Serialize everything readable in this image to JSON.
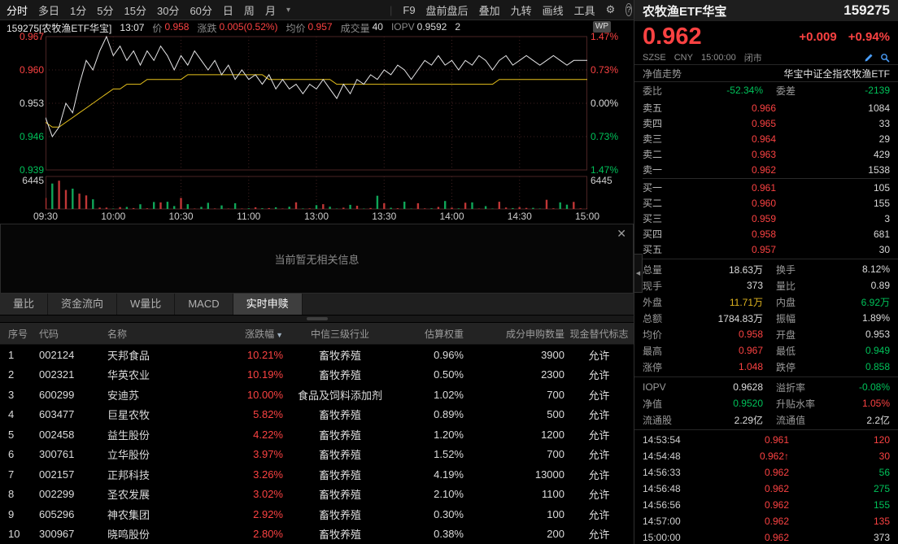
{
  "colors": {
    "red": "#fb4242",
    "green": "#00c25a",
    "yellow": "#e0b520",
    "white": "#dcdcdc",
    "gray": "#9a9a9a"
  },
  "toolbar": {
    "period_items": [
      "分时",
      "多日",
      "1分",
      "5分",
      "15分",
      "30分",
      "60分",
      "日",
      "周",
      "月"
    ],
    "active_period": "分时",
    "dropdown_caret": "▾",
    "separator": "|",
    "tool_items": [
      "F9",
      "盘前盘后",
      "叠加",
      "九转",
      "画线",
      "工具"
    ],
    "gear_icon": "⚙",
    "help_icon": "?",
    "chevron_icon": "›"
  },
  "chart_header": {
    "symbol": "159275[农牧渔ETF华宝]",
    "time": "13:07",
    "tokens": [
      {
        "label": "价",
        "value": "0.958",
        "color": "red"
      },
      {
        "label": "涨跌",
        "value": "0.005(0.52%)",
        "color": "red"
      },
      {
        "label": "均价",
        "value": "0.957",
        "color": "red"
      },
      {
        "label": "成交量",
        "value": "40",
        "color": "white"
      },
      {
        "label": "IOPV",
        "value": "0.9592",
        "color": "white"
      },
      {
        "label": "",
        "value": "2",
        "color": "white"
      }
    ],
    "wp_badge": "WP"
  },
  "chart": {
    "y_axis_left": [
      {
        "label": "0.967",
        "color": "red"
      },
      {
        "label": "0.960",
        "color": "red"
      },
      {
        "label": "0.953",
        "color": "white"
      },
      {
        "label": "0.946",
        "color": "green"
      },
      {
        "label": "0.939",
        "color": "green"
      }
    ],
    "y_axis_right": [
      {
        "label": "1.47%",
        "color": "red"
      },
      {
        "label": "0.73%",
        "color": "red"
      },
      {
        "label": "0.00%",
        "color": "white"
      },
      {
        "label": "0.73%",
        "color": "green"
      },
      {
        "label": "1.47%",
        "color": "green"
      }
    ],
    "volume_axis_left": "6445",
    "volume_axis_right": "6445",
    "x_ticks": [
      "09:30",
      "10:00",
      "10:30",
      "11:00",
      "13:00",
      "13:30",
      "14:00",
      "14:30",
      "15:00"
    ],
    "price_min": 0.939,
    "price_max": 0.967,
    "preclose": 0.953,
    "volume_max": 6445,
    "price_series": [
      0.95,
      0.946,
      0.948,
      0.953,
      0.951,
      0.957,
      0.962,
      0.96,
      0.964,
      0.967,
      0.963,
      0.965,
      0.962,
      0.964,
      0.961,
      0.964,
      0.962,
      0.965,
      0.963,
      0.96,
      0.963,
      0.961,
      0.964,
      0.962,
      0.96,
      0.962,
      0.959,
      0.961,
      0.958,
      0.96,
      0.958,
      0.959,
      0.957,
      0.959,
      0.956,
      0.958,
      0.956,
      0.957,
      0.955,
      0.957,
      0.956,
      0.958,
      0.956,
      0.954,
      0.957,
      0.955,
      0.958,
      0.957,
      0.959,
      0.958,
      0.96,
      0.959,
      0.961,
      0.96,
      0.958,
      0.96,
      0.962,
      0.961,
      0.963,
      0.961,
      0.962,
      0.96,
      0.962,
      0.961,
      0.963,
      0.962,
      0.96,
      0.962,
      0.963,
      0.961,
      0.962,
      0.963,
      0.962,
      0.961,
      0.962,
      0.963,
      0.962,
      0.961,
      0.962,
      0.962,
      0.962
    ],
    "avg_series": [
      0.949,
      0.948,
      0.948,
      0.949,
      0.95,
      0.951,
      0.952,
      0.953,
      0.954,
      0.955,
      0.956,
      0.956,
      0.957,
      0.957,
      0.957,
      0.958,
      0.958,
      0.958,
      0.958,
      0.958,
      0.958,
      0.959,
      0.959,
      0.959,
      0.959,
      0.959,
      0.959,
      0.959,
      0.959,
      0.959,
      0.959,
      0.959,
      0.959,
      0.958,
      0.958,
      0.958,
      0.958,
      0.958,
      0.958,
      0.958,
      0.958,
      0.958,
      0.958,
      0.957,
      0.957,
      0.957,
      0.957,
      0.957,
      0.957,
      0.957,
      0.957,
      0.957,
      0.957,
      0.957,
      0.957,
      0.957,
      0.957,
      0.957,
      0.957,
      0.957,
      0.957,
      0.957,
      0.957,
      0.957,
      0.957,
      0.957,
      0.957,
      0.958,
      0.958,
      0.958,
      0.958,
      0.958,
      0.958,
      0.958,
      0.958,
      0.958,
      0.958,
      0.958,
      0.958,
      0.958,
      0.958
    ]
  },
  "message_panel": {
    "text": "当前暂无相关信息",
    "close": "✕"
  },
  "tabs": [
    {
      "label": "量比",
      "active": false
    },
    {
      "label": "资金流向",
      "active": false
    },
    {
      "label": "W量比",
      "active": false
    },
    {
      "label": "MACD",
      "active": false
    },
    {
      "label": "实时申赎",
      "active": true
    }
  ],
  "table": {
    "headers": [
      "序号",
      "代码",
      "名称",
      "涨跌幅",
      "中信三级行业",
      "估算权重",
      "成分申购数量",
      "现金替代标志"
    ],
    "sorted_column": "涨跌幅",
    "sort_arrow": "▼",
    "rows": [
      [
        "1",
        "002124",
        "天邦食品",
        "10.21%",
        "畜牧养殖",
        "0.96%",
        "3900",
        "允许"
      ],
      [
        "2",
        "002321",
        "华英农业",
        "10.19%",
        "畜牧养殖",
        "0.50%",
        "2300",
        "允许"
      ],
      [
        "3",
        "600299",
        "安迪苏",
        "10.00%",
        "食品及饲料添加剂",
        "1.02%",
        "700",
        "允许"
      ],
      [
        "4",
        "603477",
        "巨星农牧",
        "5.82%",
        "畜牧养殖",
        "0.89%",
        "500",
        "允许"
      ],
      [
        "5",
        "002458",
        "益生股份",
        "4.22%",
        "畜牧养殖",
        "1.20%",
        "1200",
        "允许"
      ],
      [
        "6",
        "300761",
        "立华股份",
        "3.97%",
        "畜牧养殖",
        "1.52%",
        "700",
        "允许"
      ],
      [
        "7",
        "002157",
        "正邦科技",
        "3.26%",
        "畜牧养殖",
        "4.19%",
        "13000",
        "允许"
      ],
      [
        "8",
        "002299",
        "圣农发展",
        "3.02%",
        "畜牧养殖",
        "2.10%",
        "1100",
        "允许"
      ],
      [
        "9",
        "605296",
        "神农集团",
        "2.92%",
        "畜牧养殖",
        "0.30%",
        "100",
        "允许"
      ],
      [
        "10",
        "300967",
        "晓鸣股份",
        "2.80%",
        "畜牧养殖",
        "0.38%",
        "200",
        "允许"
      ]
    ]
  },
  "quote": {
    "name": "农牧渔ETF华宝",
    "code": "159275",
    "last": "0.962",
    "change": "+0.009",
    "change_pct": "+0.94%",
    "exchange": "SZSE",
    "currency": "CNY",
    "time": "15:00:00",
    "status": "闭市",
    "nav_label": "净值走势",
    "full_name": "华宝中证全指农牧渔ETF",
    "weibi": [
      {
        "label": "委比",
        "value": "-52.34%",
        "color": "green"
      },
      {
        "label": "委差",
        "value": "-2139",
        "color": "green"
      }
    ],
    "asks": [
      {
        "label": "卖五",
        "price": "0.966",
        "price_color": "red",
        "vol": "1084"
      },
      {
        "label": "卖四",
        "price": "0.965",
        "price_color": "red",
        "vol": "33"
      },
      {
        "label": "卖三",
        "price": "0.964",
        "price_color": "red",
        "vol": "29"
      },
      {
        "label": "卖二",
        "price": "0.963",
        "price_color": "red",
        "vol": "429"
      },
      {
        "label": "卖一",
        "price": "0.962",
        "price_color": "red",
        "vol": "1538"
      }
    ],
    "bids": [
      {
        "label": "买一",
        "price": "0.961",
        "price_color": "red",
        "vol": "105"
      },
      {
        "label": "买二",
        "price": "0.960",
        "price_color": "red",
        "vol": "155"
      },
      {
        "label": "买三",
        "price": "0.959",
        "price_color": "red",
        "vol": "3"
      },
      {
        "label": "买四",
        "price": "0.958",
        "price_color": "red",
        "vol": "681"
      },
      {
        "label": "买五",
        "price": "0.957",
        "price_color": "red",
        "vol": "30"
      }
    ],
    "stats": [
      [
        {
          "label": "总量",
          "value": "18.63万",
          "color": "white"
        },
        {
          "label": "换手",
          "value": "8.12%",
          "color": "white"
        }
      ],
      [
        {
          "label": "现手",
          "value": "373",
          "color": "white"
        },
        {
          "label": "量比",
          "value": "0.89",
          "color": "white"
        }
      ],
      [
        {
          "label": "外盘",
          "value": "11.71万",
          "color": "yellow"
        },
        {
          "label": "内盘",
          "value": "6.92万",
          "color": "green"
        }
      ],
      [
        {
          "label": "总额",
          "value": "1784.83万",
          "color": "white"
        },
        {
          "label": "振幅",
          "value": "1.89%",
          "color": "white"
        }
      ],
      [
        {
          "label": "均价",
          "value": "0.958",
          "color": "red"
        },
        {
          "label": "开盘",
          "value": "0.953",
          "color": "white"
        }
      ],
      [
        {
          "label": "最高",
          "value": "0.967",
          "color": "red"
        },
        {
          "label": "最低",
          "value": "0.949",
          "color": "green"
        }
      ],
      [
        {
          "label": "涨停",
          "value": "1.048",
          "color": "red"
        },
        {
          "label": "跌停",
          "value": "0.858",
          "color": "green"
        }
      ]
    ],
    "stats2": [
      [
        {
          "label": "IOPV",
          "value": "0.9628",
          "color": "white"
        },
        {
          "label": "溢折率",
          "value": "-0.08%",
          "color": "green"
        }
      ],
      [
        {
          "label": "净值",
          "value": "0.9520",
          "color": "green"
        },
        {
          "label": "升贴水率",
          "value": "1.05%",
          "color": "red"
        }
      ],
      [
        {
          "label": "流通股",
          "value": "2.29亿",
          "color": "white"
        },
        {
          "label": "流通值",
          "value": "2.2亿",
          "color": "white"
        }
      ]
    ],
    "ticks": [
      {
        "time": "14:53:54",
        "price": "0.961",
        "price_color": "red",
        "arrow": "",
        "vol": "120",
        "vol_color": "red"
      },
      {
        "time": "14:54:48",
        "price": "0.962",
        "price_color": "red",
        "arrow": "↑",
        "vol": "30",
        "vol_color": "red"
      },
      {
        "time": "14:56:33",
        "price": "0.962",
        "price_color": "red",
        "arrow": "",
        "vol": "56",
        "vol_color": "green"
      },
      {
        "time": "14:56:48",
        "price": "0.962",
        "price_color": "red",
        "arrow": "",
        "vol": "275",
        "vol_color": "green"
      },
      {
        "time": "14:56:56",
        "price": "0.962",
        "price_color": "red",
        "arrow": "",
        "vol": "155",
        "vol_color": "green"
      },
      {
        "time": "14:57:00",
        "price": "0.962",
        "price_color": "red",
        "arrow": "",
        "vol": "135",
        "vol_color": "red"
      },
      {
        "time": "15:00:00",
        "price": "0.962",
        "price_color": "red",
        "arrow": "",
        "vol": "373",
        "vol_color": "white"
      }
    ]
  }
}
